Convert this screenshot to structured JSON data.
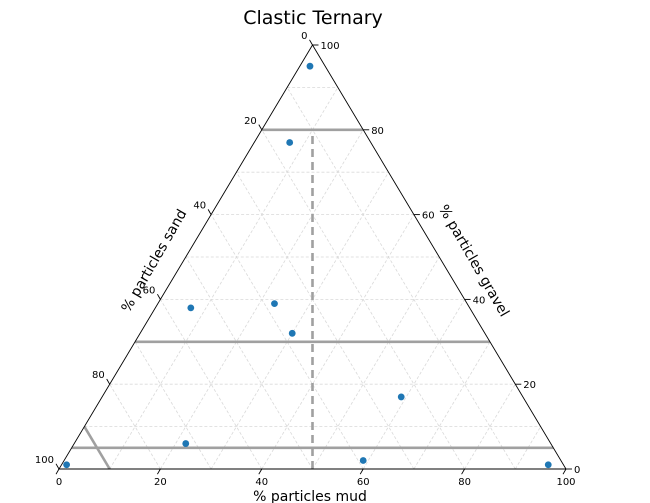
{
  "chart_data": {
    "type": "scatter",
    "subtype": "ternary",
    "title": "Clastic Ternary",
    "axes": {
      "mud": {
        "label": "% particles mud",
        "position": "bottom",
        "range": [
          0,
          100
        ],
        "ticks": [
          0,
          20,
          40,
          60,
          80,
          100
        ]
      },
      "gravel": {
        "label": "% particles gravel",
        "position": "right",
        "range": [
          0,
          100
        ],
        "ticks": [
          0,
          20,
          40,
          60,
          80,
          100
        ]
      },
      "sand": {
        "label": "% particles sand",
        "position": "left",
        "range": [
          0,
          100
        ],
        "ticks": [
          0,
          20,
          40,
          60,
          80,
          100
        ]
      }
    },
    "grid": true,
    "boundary_lines": [
      {
        "component": "gravel",
        "value": 80,
        "style": "solid"
      },
      {
        "component": "gravel",
        "value": 30,
        "style": "solid"
      },
      {
        "component": "gravel",
        "value": 5,
        "style": "solid"
      },
      {
        "component": "sand",
        "value": 90,
        "style": "solid"
      },
      {
        "component": "mud_sand_ratio",
        "value": 1,
        "style": "dashed"
      }
    ],
    "points": [
      {
        "mud": 2,
        "gravel": 95,
        "sand": 3
      },
      {
        "mud": 7,
        "gravel": 77,
        "sand": 16
      },
      {
        "mud": 23,
        "gravel": 39,
        "sand": 38
      },
      {
        "mud": 30,
        "gravel": 32,
        "sand": 38
      },
      {
        "mud": 7,
        "gravel": 38,
        "sand": 55
      },
      {
        "mud": 59,
        "gravel": 17,
        "sand": 24
      },
      {
        "mud": 22,
        "gravel": 6,
        "sand": 72
      },
      {
        "mud": 59,
        "gravel": 2,
        "sand": 39
      },
      {
        "mud": 96,
        "gravel": 1,
        "sand": 3
      },
      {
        "mud": 1,
        "gravel": 1,
        "sand": 98
      }
    ],
    "point_color": "#1f77b4"
  }
}
